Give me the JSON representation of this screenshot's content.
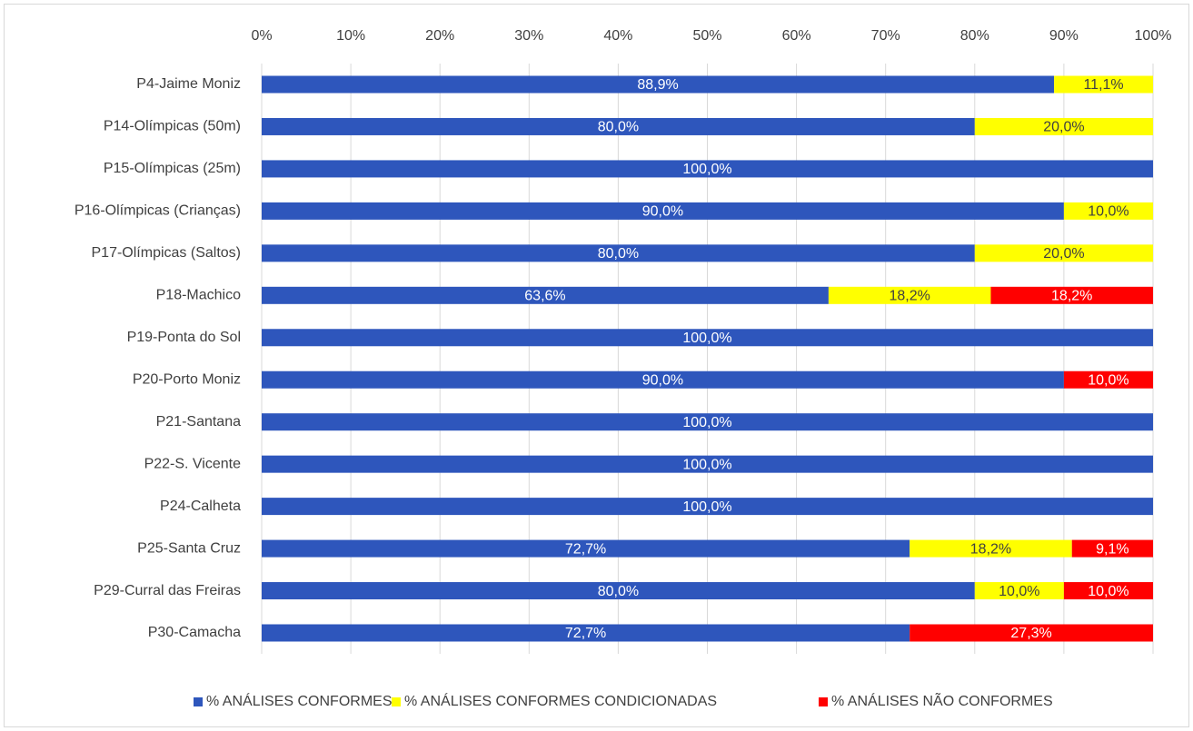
{
  "chart_data": {
    "type": "stacked-barh",
    "categories": [
      "P4-Jaime Moniz",
      "P14-Olímpicas (50m)",
      "P15-Olímpicas (25m)",
      "P16-Olímpicas (Crianças)",
      "P17-Olímpicas (Saltos)",
      "P18-Machico",
      "P19-Ponta do Sol",
      "P20-Porto Moniz",
      "P21-Santana",
      "P22-S. Vicente",
      "P24-Calheta",
      "P25-Santa Cruz",
      "P29-Curral das Freiras",
      "P30-Camacha"
    ],
    "series": [
      {
        "name": "% ANÁLISES CONFORMES",
        "color": "#2e56bc",
        "values": [
          88.9,
          80,
          100,
          90,
          80,
          63.6,
          100,
          90,
          100,
          100,
          100,
          72.7,
          80,
          72.7
        ],
        "value_labels": [
          "88,9%",
          "80,0%",
          "100,0%",
          "90,0%",
          "80,0%",
          "63,6%",
          "100,0%",
          "90,0%",
          "100,0%",
          "100,0%",
          "100,0%",
          "72,7%",
          "80,0%",
          "72,7%"
        ]
      },
      {
        "name": "% ANÁLISES CONFORMES CONDICIONADAS",
        "color": "#ffff00",
        "values": [
          11.1,
          20,
          0,
          10,
          20,
          18.2,
          0,
          0,
          0,
          0,
          0,
          18.2,
          10,
          0
        ],
        "value_labels": [
          "11,1%",
          "20,0%",
          null,
          "10,0%",
          "20,0%",
          "18,2%",
          null,
          null,
          null,
          null,
          null,
          "18,2%",
          "10,0%",
          null
        ]
      },
      {
        "name": "% ANÁLISES NÃO CONFORMES",
        "color": "#ff0000",
        "values": [
          0,
          0,
          0,
          0,
          0,
          18.2,
          0,
          10,
          0,
          0,
          0,
          9.1,
          10,
          27.3
        ],
        "value_labels": [
          null,
          null,
          null,
          null,
          null,
          "18,2%",
          null,
          "10,0%",
          null,
          null,
          null,
          "9,1%",
          "10,0%",
          "27,3%"
        ]
      }
    ],
    "xlim": [
      0,
      100
    ],
    "xticks": [
      {
        "value": 0,
        "label": "0%"
      },
      {
        "value": 10,
        "label": "10%"
      },
      {
        "value": 20,
        "label": "20%"
      },
      {
        "value": 30,
        "label": "30%"
      },
      {
        "value": 40,
        "label": "40%"
      },
      {
        "value": 50,
        "label": "50%"
      },
      {
        "value": 60,
        "label": "60%"
      },
      {
        "value": 70,
        "label": "70%"
      },
      {
        "value": 80,
        "label": "80%"
      },
      {
        "value": 90,
        "label": "90%"
      },
      {
        "value": 100,
        "label": "100%"
      }
    ],
    "grid": true,
    "legend": "bottom"
  }
}
